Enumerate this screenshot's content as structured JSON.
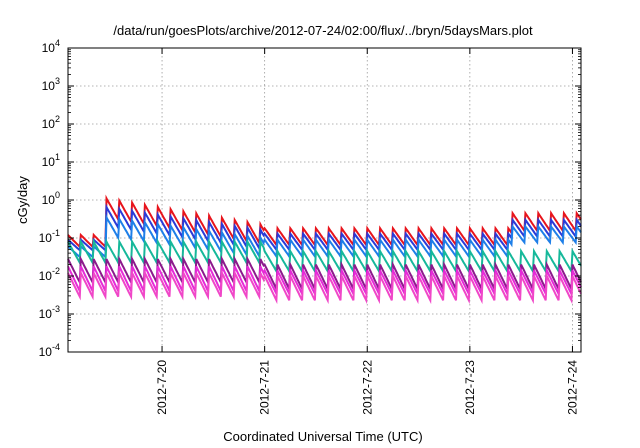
{
  "chart_data": {
    "type": "line",
    "title": "/data/run/goesPlots/archive/2012-07-24/02:00/flux/../bryn/5daysMars.plot",
    "xlabel": "Coordinated Universal Time (UTC)",
    "ylabel": "cGy/day",
    "yscale": "log",
    "ylim": [
      0.0001,
      10000
    ],
    "xlim": [
      "2012-07-19 02:00",
      "2012-07-24 02:00"
    ],
    "grid": true,
    "legend": "none",
    "y_ticks": [
      {
        "base": "10",
        "exp": "-4",
        "value": 0.0001
      },
      {
        "base": "10",
        "exp": "-3",
        "value": 0.001
      },
      {
        "base": "10",
        "exp": "-2",
        "value": 0.01
      },
      {
        "base": "10",
        "exp": "-1",
        "value": 0.1
      },
      {
        "base": "10",
        "exp": "0",
        "value": 1
      },
      {
        "base": "10",
        "exp": "1",
        "value": 10
      },
      {
        "base": "10",
        "exp": "2",
        "value": 100
      },
      {
        "base": "10",
        "exp": "3",
        "value": 1000
      },
      {
        "base": "10",
        "exp": "4",
        "value": 10000
      }
    ],
    "x_ticks": [
      {
        "label": "2012-7-20",
        "value": "2012-07-20 00:00"
      },
      {
        "label": "2012-7-21",
        "value": "2012-07-21 00:00"
      },
      {
        "label": "2012-7-22",
        "value": "2012-07-22 00:00"
      },
      {
        "label": "2012-7-23",
        "value": "2012-07-23 00:00"
      },
      {
        "label": "2012-7-24",
        "value": "2012-07-24 00:00"
      }
    ],
    "sawtooth_period_hours": 3,
    "series": [
      {
        "color": "#e8141c",
        "regimes": [
          {
            "from": "2012-07-19 02:00",
            "to": "2012-07-19 11:00",
            "peak": 0.12,
            "trough": 0.055
          },
          {
            "from": "2012-07-19 11:00",
            "to": "2012-07-21 00:00",
            "peak_start": 1.1,
            "peak_end": 0.22,
            "ratio": 3.5
          },
          {
            "from": "2012-07-21 00:00",
            "to": "2012-07-23 10:00",
            "peak": 0.18,
            "trough": 0.06
          },
          {
            "from": "2012-07-23 10:00",
            "to": "2012-07-24 02:00",
            "peak": 0.45,
            "trough": 0.14
          }
        ]
      },
      {
        "color": "#2a3ad8",
        "regimes": [
          {
            "from": "2012-07-19 02:00",
            "to": "2012-07-19 11:00",
            "peak": 0.09,
            "trough": 0.045
          },
          {
            "from": "2012-07-19 11:00",
            "to": "2012-07-21 00:00",
            "peak_start": 0.65,
            "peak_end": 0.16,
            "ratio": 3.5
          },
          {
            "from": "2012-07-21 00:00",
            "to": "2012-07-23 10:00",
            "peak": 0.13,
            "trough": 0.045
          },
          {
            "from": "2012-07-23 10:00",
            "to": "2012-07-24 02:00",
            "peak": 0.3,
            "trough": 0.1
          }
        ]
      },
      {
        "color": "#1e7fe8",
        "regimes": [
          {
            "from": "2012-07-19 02:00",
            "to": "2012-07-19 11:00",
            "peak": 0.06,
            "trough": 0.03
          },
          {
            "from": "2012-07-19 11:00",
            "to": "2012-07-21 00:00",
            "peak_start": 0.35,
            "peak_end": 0.1,
            "ratio": 3.5
          },
          {
            "from": "2012-07-21 00:00",
            "to": "2012-07-23 10:00",
            "peak": 0.09,
            "trough": 0.03
          },
          {
            "from": "2012-07-23 10:00",
            "to": "2012-07-24 02:00",
            "peak": 0.2,
            "trough": 0.07
          }
        ]
      },
      {
        "color": "#16b89a",
        "regimes": [
          {
            "from": "2012-07-19 02:00",
            "to": "2012-07-21 00:00",
            "peak": 0.08,
            "trough": 0.02
          },
          {
            "from": "2012-07-21 00:00",
            "to": "2012-07-24 02:00",
            "peak": 0.045,
            "trough": 0.012
          }
        ]
      },
      {
        "color": "#8c1a8c",
        "regimes": [
          {
            "from": "2012-07-19 02:00",
            "to": "2012-07-21 00:00",
            "peak": 0.028,
            "trough": 0.006
          },
          {
            "from": "2012-07-21 00:00",
            "to": "2012-07-24 02:00",
            "peak": 0.02,
            "trough": 0.004
          }
        ]
      },
      {
        "color": "#e62ad8",
        "regimes": [
          {
            "from": "2012-07-19 02:00",
            "to": "2012-07-21 00:00",
            "peak": 0.018,
            "trough": 0.0035
          },
          {
            "from": "2012-07-21 00:00",
            "to": "2012-07-24 02:00",
            "peak": 0.014,
            "trough": 0.003
          }
        ]
      },
      {
        "color": "#f047c8",
        "regimes": [
          {
            "from": "2012-07-19 02:00",
            "to": "2012-07-21 00:00",
            "peak": 0.012,
            "trough": 0.0025
          },
          {
            "from": "2012-07-21 00:00",
            "to": "2012-07-24 02:00",
            "peak": 0.01,
            "trough": 0.002
          }
        ]
      }
    ]
  }
}
